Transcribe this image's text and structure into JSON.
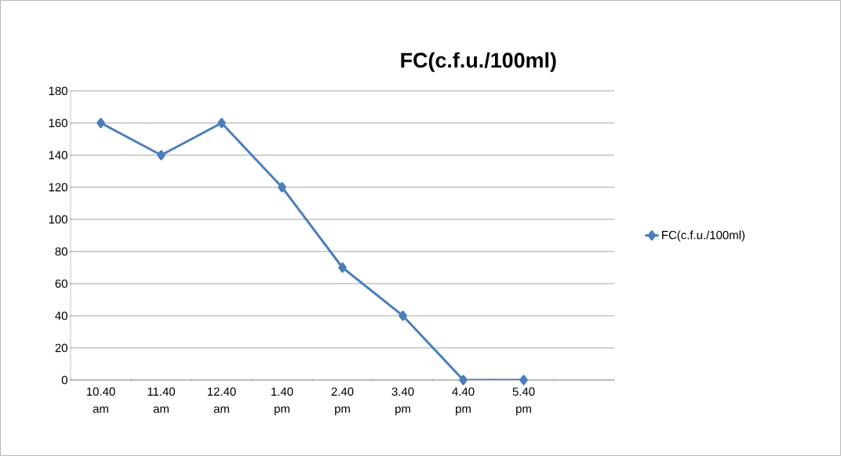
{
  "chart_data": {
    "type": "line",
    "title": "FC(c.f.u./100ml)",
    "categories": [
      "10.40 am",
      "11.40 am",
      "12.40 am",
      "1.40 pm",
      "2.40 pm",
      "3.40 pm",
      "4.40 pm",
      "5.40 pm",
      null
    ],
    "series": [
      {
        "name": "FC(c.f.u./100ml)",
        "color": "#4a7ebb",
        "values": [
          160,
          140,
          160,
          120,
          70,
          40,
          0,
          0,
          null
        ]
      }
    ],
    "ylim": [
      0,
      180
    ],
    "yticks": [
      0,
      20,
      40,
      60,
      80,
      100,
      120,
      140,
      160,
      180
    ],
    "grid": "y",
    "legend": "right",
    "marker": "diamond",
    "line_style": "solid"
  }
}
